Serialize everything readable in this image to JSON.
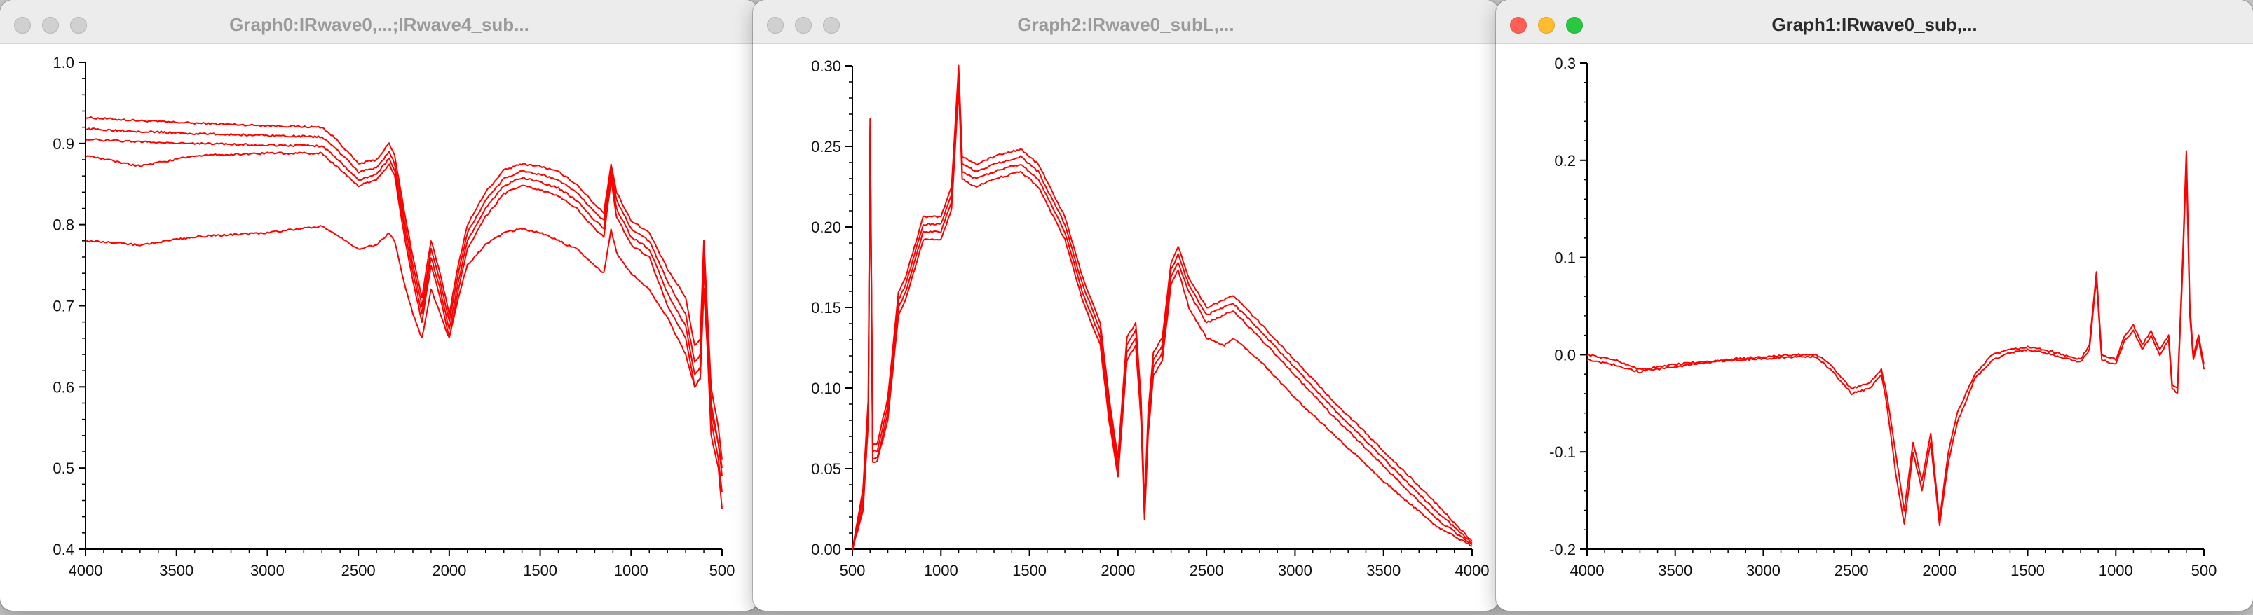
{
  "windows": [
    {
      "title": "Graph0:IRwave0,...;IRwave4_sub...",
      "active": false
    },
    {
      "title": "Graph2:IRwave0_subL,...",
      "active": false
    },
    {
      "title": "Graph1:IRwave0_sub,...",
      "active": true
    }
  ],
  "colors": {
    "trace": "#ff0000",
    "titlebar": "#ececec",
    "desktop": "#c9c9c9"
  },
  "chart_data": [
    {
      "type": "line",
      "title": "",
      "xlabel": "",
      "ylabel": "",
      "xlim": [
        4000,
        500
      ],
      "ylim": [
        0.4,
        1.0
      ],
      "x_reversed": true,
      "x_ticks": [
        "4000",
        "3500",
        "3000",
        "2500",
        "2000",
        "1500",
        "1000",
        "500"
      ],
      "y_ticks": [
        "0.4",
        "0.5",
        "0.6",
        "0.7",
        "0.8",
        "0.9",
        "1.0"
      ],
      "grid": false,
      "color": "#ff0000",
      "series": [
        {
          "x": [
            4000,
            3700,
            3400,
            3000,
            2700,
            2620,
            2500,
            2400,
            2330,
            2300,
            2250,
            2200,
            2150,
            2100,
            2050,
            2000,
            1950,
            1900,
            1800,
            1700,
            1600,
            1500,
            1400,
            1300,
            1200,
            1150,
            1110,
            1080,
            1000,
            900,
            800,
            700,
            650,
            620,
            600,
            560,
            520,
            500
          ],
          "values": [
            0.932,
            0.928,
            0.925,
            0.922,
            0.92,
            0.905,
            0.875,
            0.88,
            0.9,
            0.885,
            0.82,
            0.76,
            0.71,
            0.78,
            0.74,
            0.69,
            0.75,
            0.8,
            0.84,
            0.867,
            0.875,
            0.872,
            0.865,
            0.85,
            0.825,
            0.815,
            0.875,
            0.84,
            0.805,
            0.79,
            0.745,
            0.71,
            0.65,
            0.66,
            0.78,
            0.6,
            0.55,
            0.51
          ]
        },
        {
          "x": [
            4000,
            3700,
            3400,
            3000,
            2700,
            2620,
            2500,
            2400,
            2330,
            2300,
            2250,
            2200,
            2150,
            2100,
            2050,
            2000,
            1950,
            1900,
            1800,
            1700,
            1600,
            1500,
            1400,
            1300,
            1200,
            1150,
            1110,
            1080,
            1000,
            900,
            800,
            700,
            650,
            620,
            600,
            560,
            520,
            500
          ],
          "values": [
            0.918,
            0.915,
            0.912,
            0.91,
            0.908,
            0.893,
            0.865,
            0.87,
            0.89,
            0.875,
            0.81,
            0.75,
            0.7,
            0.77,
            0.73,
            0.68,
            0.74,
            0.79,
            0.83,
            0.857,
            0.866,
            0.862,
            0.855,
            0.84,
            0.815,
            0.805,
            0.868,
            0.83,
            0.795,
            0.78,
            0.73,
            0.69,
            0.63,
            0.64,
            0.77,
            0.58,
            0.53,
            0.49
          ]
        },
        {
          "x": [
            4000,
            3700,
            3400,
            3000,
            2700,
            2620,
            2500,
            2400,
            2330,
            2300,
            2250,
            2200,
            2150,
            2100,
            2050,
            2000,
            1950,
            1900,
            1800,
            1700,
            1600,
            1500,
            1400,
            1300,
            1200,
            1150,
            1110,
            1080,
            1000,
            900,
            800,
            700,
            650,
            620,
            600,
            560,
            520,
            500
          ],
          "values": [
            0.905,
            0.902,
            0.9,
            0.898,
            0.897,
            0.882,
            0.855,
            0.862,
            0.882,
            0.867,
            0.8,
            0.74,
            0.69,
            0.76,
            0.72,
            0.67,
            0.73,
            0.78,
            0.82,
            0.848,
            0.858,
            0.853,
            0.845,
            0.83,
            0.805,
            0.795,
            0.86,
            0.82,
            0.785,
            0.77,
            0.715,
            0.675,
            0.615,
            0.625,
            0.76,
            0.56,
            0.51,
            0.47
          ]
        },
        {
          "x": [
            4000,
            3700,
            3400,
            3000,
            2700,
            2620,
            2500,
            2400,
            2330,
            2300,
            2250,
            2200,
            2150,
            2100,
            2050,
            2000,
            1950,
            1900,
            1800,
            1700,
            1600,
            1500,
            1400,
            1300,
            1200,
            1150,
            1110,
            1080,
            1000,
            900,
            800,
            700,
            650,
            620,
            600,
            560,
            520,
            500
          ],
          "values": [
            0.885,
            0.872,
            0.885,
            0.888,
            0.888,
            0.872,
            0.848,
            0.855,
            0.875,
            0.86,
            0.79,
            0.73,
            0.68,
            0.75,
            0.71,
            0.66,
            0.72,
            0.77,
            0.81,
            0.838,
            0.848,
            0.843,
            0.835,
            0.82,
            0.795,
            0.785,
            0.855,
            0.81,
            0.775,
            0.76,
            0.7,
            0.66,
            0.6,
            0.61,
            0.75,
            0.54,
            0.5,
            0.45
          ]
        },
        {
          "x": [
            4000,
            3700,
            3400,
            3000,
            2700,
            2620,
            2500,
            2400,
            2330,
            2300,
            2250,
            2200,
            2150,
            2100,
            2050,
            2000,
            1950,
            1900,
            1800,
            1700,
            1600,
            1500,
            1400,
            1300,
            1200,
            1150,
            1110,
            1080,
            1000,
            900,
            800,
            700,
            650,
            620,
            600,
            560,
            520,
            500
          ],
          "values": [
            0.78,
            0.775,
            0.785,
            0.79,
            0.798,
            0.788,
            0.77,
            0.775,
            0.79,
            0.78,
            0.73,
            0.69,
            0.66,
            0.72,
            0.69,
            0.66,
            0.71,
            0.75,
            0.775,
            0.79,
            0.795,
            0.79,
            0.78,
            0.77,
            0.75,
            0.74,
            0.795,
            0.765,
            0.74,
            0.72,
            0.685,
            0.64,
            0.6,
            0.61,
            0.72,
            0.57,
            0.53,
            0.5
          ]
        }
      ]
    },
    {
      "type": "line",
      "title": "",
      "xlabel": "",
      "ylabel": "",
      "xlim": [
        500,
        4000
      ],
      "ylim": [
        0.0,
        0.32
      ],
      "x_reversed": false,
      "x_ticks": [
        "500",
        "1000",
        "1500",
        "2000",
        "2500",
        "3000",
        "3500",
        "4000"
      ],
      "y_ticks": [
        "0.00",
        "0.05",
        "0.10",
        "0.15",
        "0.20",
        "0.25",
        "0.30"
      ],
      "grid": false,
      "color": "#ff0000",
      "series": [
        {
          "x": [
            500,
            560,
            590,
            600,
            615,
            640,
            700,
            760,
            800,
            900,
            1000,
            1060,
            1090,
            1100,
            1120,
            1200,
            1300,
            1450,
            1550,
            1700,
            1800,
            1900,
            1950,
            2000,
            2050,
            2100,
            2130,
            2150,
            2170,
            2200,
            2250,
            2300,
            2340,
            2400,
            2500,
            2600,
            2650,
            2800,
            3000,
            3200,
            3500,
            3800,
            4000
          ],
          "values": [
            0.0,
            0.04,
            0.1,
            0.285,
            0.07,
            0.07,
            0.1,
            0.17,
            0.18,
            0.22,
            0.22,
            0.24,
            0.3,
            0.32,
            0.26,
            0.255,
            0.26,
            0.265,
            0.255,
            0.22,
            0.18,
            0.15,
            0.1,
            0.06,
            0.14,
            0.15,
            0.1,
            0.03,
            0.09,
            0.13,
            0.14,
            0.19,
            0.2,
            0.18,
            0.16,
            0.165,
            0.168,
            0.15,
            0.125,
            0.1,
            0.065,
            0.03,
            0.005
          ]
        },
        {
          "x": [
            500,
            560,
            590,
            600,
            615,
            640,
            700,
            760,
            800,
            900,
            1000,
            1060,
            1090,
            1100,
            1120,
            1200,
            1300,
            1450,
            1550,
            1700,
            1800,
            1900,
            1950,
            2000,
            2050,
            2100,
            2130,
            2150,
            2170,
            2200,
            2250,
            2300,
            2340,
            2400,
            2500,
            2600,
            2650,
            2800,
            3000,
            3200,
            3500,
            3800,
            4000
          ],
          "values": [
            0.0,
            0.035,
            0.095,
            0.28,
            0.065,
            0.065,
            0.095,
            0.165,
            0.175,
            0.215,
            0.215,
            0.235,
            0.295,
            0.315,
            0.255,
            0.25,
            0.255,
            0.26,
            0.25,
            0.215,
            0.175,
            0.145,
            0.095,
            0.055,
            0.135,
            0.145,
            0.095,
            0.025,
            0.085,
            0.125,
            0.135,
            0.185,
            0.195,
            0.175,
            0.155,
            0.16,
            0.163,
            0.145,
            0.12,
            0.095,
            0.06,
            0.025,
            0.004
          ]
        },
        {
          "x": [
            500,
            560,
            590,
            600,
            615,
            640,
            700,
            760,
            800,
            900,
            1000,
            1060,
            1090,
            1100,
            1120,
            1200,
            1300,
            1450,
            1550,
            1700,
            1800,
            1900,
            1950,
            2000,
            2050,
            2100,
            2130,
            2150,
            2170,
            2200,
            2250,
            2300,
            2340,
            2400,
            2500,
            2600,
            2650,
            2800,
            3000,
            3200,
            3500,
            3800,
            4000
          ],
          "values": [
            0.0,
            0.03,
            0.09,
            0.275,
            0.06,
            0.06,
            0.09,
            0.16,
            0.17,
            0.21,
            0.21,
            0.23,
            0.29,
            0.31,
            0.25,
            0.245,
            0.25,
            0.255,
            0.245,
            0.21,
            0.17,
            0.14,
            0.09,
            0.05,
            0.13,
            0.14,
            0.09,
            0.02,
            0.08,
            0.12,
            0.13,
            0.18,
            0.19,
            0.17,
            0.15,
            0.155,
            0.158,
            0.14,
            0.115,
            0.09,
            0.055,
            0.02,
            0.003
          ]
        },
        {
          "x": [
            500,
            560,
            590,
            600,
            615,
            640,
            700,
            760,
            800,
            900,
            1000,
            1060,
            1090,
            1100,
            1120,
            1200,
            1300,
            1450,
            1550,
            1700,
            1800,
            1900,
            1950,
            2000,
            2050,
            2100,
            2130,
            2150,
            2170,
            2200,
            2250,
            2300,
            2340,
            2400,
            2500,
            2600,
            2650,
            2800,
            3000,
            3200,
            3500,
            3800,
            4000
          ],
          "values": [
            0.0,
            0.025,
            0.085,
            0.27,
            0.058,
            0.058,
            0.085,
            0.155,
            0.165,
            0.205,
            0.205,
            0.225,
            0.285,
            0.305,
            0.245,
            0.24,
            0.245,
            0.25,
            0.24,
            0.205,
            0.165,
            0.135,
            0.085,
            0.048,
            0.125,
            0.135,
            0.085,
            0.02,
            0.075,
            0.115,
            0.125,
            0.175,
            0.185,
            0.16,
            0.14,
            0.135,
            0.14,
            0.125,
            0.1,
            0.078,
            0.045,
            0.015,
            0.002
          ]
        }
      ]
    },
    {
      "type": "line",
      "title": "",
      "xlabel": "",
      "ylabel": "",
      "xlim": [
        4000,
        500
      ],
      "ylim": [
        -0.2,
        0.3
      ],
      "x_reversed": true,
      "x_ticks": [
        "4000",
        "3500",
        "3000",
        "2500",
        "2000",
        "1500",
        "1000",
        "500"
      ],
      "y_ticks": [
        "-0.2",
        "-0.1",
        "0.0",
        "0.1",
        "0.2",
        "0.3"
      ],
      "grid": false,
      "color": "#ff0000",
      "series": [
        {
          "x": [
            4000,
            3850,
            3700,
            3600,
            3400,
            3200,
            3000,
            2800,
            2700,
            2620,
            2500,
            2400,
            2330,
            2300,
            2250,
            2200,
            2150,
            2100,
            2050,
            2000,
            1950,
            1900,
            1800,
            1700,
            1600,
            1500,
            1400,
            1300,
            1200,
            1150,
            1110,
            1080,
            1000,
            950,
            900,
            850,
            800,
            750,
            700,
            680,
            650,
            620,
            600,
            580,
            560,
            530,
            500
          ],
          "values": [
            0.0,
            -0.005,
            -0.015,
            -0.015,
            -0.01,
            -0.005,
            -0.002,
            0.0,
            0.0,
            -0.01,
            -0.035,
            -0.03,
            -0.015,
            -0.04,
            -0.1,
            -0.16,
            -0.09,
            -0.13,
            -0.08,
            -0.17,
            -0.1,
            -0.06,
            -0.02,
            0.0,
            0.005,
            0.008,
            0.005,
            0.0,
            -0.005,
            0.01,
            0.085,
            0.0,
            -0.005,
            0.02,
            0.03,
            0.01,
            0.025,
            0.005,
            0.02,
            -0.03,
            -0.035,
            0.1,
            0.21,
            0.05,
            0.0,
            0.02,
            -0.01
          ]
        },
        {
          "x": [
            4000,
            3850,
            3700,
            3600,
            3400,
            3200,
            3000,
            2800,
            2700,
            2620,
            2500,
            2400,
            2330,
            2300,
            2250,
            2200,
            2150,
            2100,
            2050,
            2000,
            1950,
            1900,
            1800,
            1700,
            1600,
            1500,
            1400,
            1300,
            1200,
            1150,
            1110,
            1080,
            1000,
            950,
            900,
            850,
            800,
            750,
            700,
            680,
            650,
            620,
            600,
            580,
            560,
            530,
            500
          ],
          "values": [
            -0.005,
            -0.01,
            -0.018,
            -0.012,
            -0.008,
            -0.006,
            -0.004,
            -0.002,
            -0.002,
            -0.015,
            -0.04,
            -0.035,
            -0.02,
            -0.05,
            -0.12,
            -0.175,
            -0.1,
            -0.14,
            -0.09,
            -0.175,
            -0.11,
            -0.07,
            -0.025,
            -0.005,
            0.002,
            0.005,
            0.002,
            -0.003,
            -0.008,
            0.005,
            0.078,
            -0.005,
            -0.01,
            0.015,
            0.025,
            0.005,
            0.02,
            0.0,
            0.015,
            -0.035,
            -0.04,
            0.09,
            0.2,
            0.04,
            -0.005,
            0.015,
            -0.015
          ]
        }
      ]
    }
  ]
}
